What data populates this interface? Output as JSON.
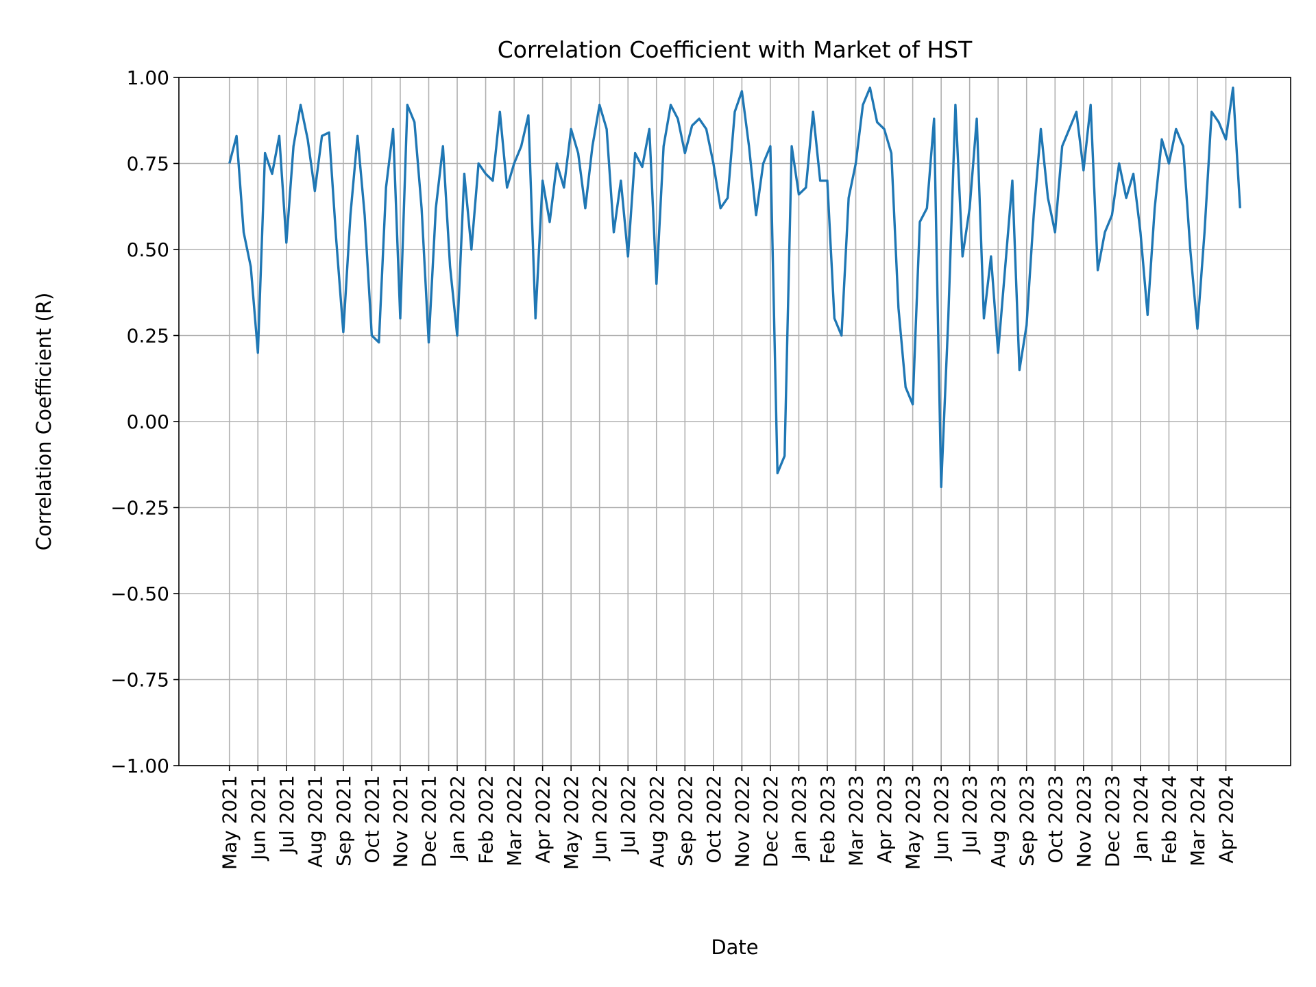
{
  "chart_data": {
    "type": "line",
    "title": "Correlation Coefficient with Market of HST",
    "x_label": "Date",
    "y_label": "Correlation Coefficient (R)",
    "color": "#1f77b4",
    "grid": true,
    "categories": [
      "May 2021",
      null,
      null,
      null,
      "Jun 2021",
      null,
      null,
      null,
      "Jul 2021",
      null,
      null,
      null,
      "Aug 2021",
      null,
      null,
      null,
      "Sep 2021",
      null,
      null,
      null,
      "Oct 2021",
      null,
      null,
      null,
      "Nov 2021",
      null,
      null,
      null,
      "Dec 2021",
      null,
      null,
      null,
      "Jan 2022",
      null,
      null,
      null,
      "Feb 2022",
      null,
      null,
      null,
      "Mar 2022",
      null,
      null,
      null,
      "Apr 2022",
      null,
      null,
      null,
      "May 2022",
      null,
      null,
      null,
      "Jun 2022",
      null,
      null,
      null,
      "Jul 2022",
      null,
      null,
      null,
      "Aug 2022",
      null,
      null,
      null,
      "Sep 2022",
      null,
      null,
      null,
      "Oct 2022",
      null,
      null,
      null,
      "Nov 2022",
      null,
      null,
      null,
      "Dec 2022",
      null,
      null,
      null,
      "Jan 2023",
      null,
      null,
      null,
      "Feb 2023",
      null,
      null,
      null,
      "Mar 2023",
      null,
      null,
      null,
      "Apr 2023",
      null,
      null,
      null,
      "May 2023",
      null,
      null,
      null,
      "Jun 2023",
      null,
      null,
      null,
      "Jul 2023",
      null,
      null,
      null,
      "Aug 2023",
      null,
      null,
      null,
      "Sep 2023",
      null,
      null,
      null,
      "Oct 2023",
      null,
      null,
      null,
      "Nov 2023",
      null,
      null,
      null,
      "Dec 2023",
      null,
      null,
      null,
      "Jan 2024",
      null,
      null,
      null,
      "Feb 2024",
      null,
      null,
      null,
      "Mar 2024",
      null,
      null,
      null,
      "Apr 2024",
      null,
      null
    ],
    "values": [
      0.75,
      0.83,
      0.55,
      0.45,
      0.2,
      0.78,
      0.72,
      0.83,
      0.52,
      0.8,
      0.92,
      0.82,
      0.67,
      0.83,
      0.84,
      0.53,
      0.26,
      0.6,
      0.83,
      0.6,
      0.25,
      0.23,
      0.68,
      0.85,
      0.3,
      0.92,
      0.87,
      0.62,
      0.23,
      0.62,
      0.8,
      0.45,
      0.25,
      0.72,
      0.5,
      0.75,
      0.72,
      0.7,
      0.9,
      0.68,
      0.75,
      0.8,
      0.89,
      0.3,
      0.7,
      0.58,
      0.75,
      0.68,
      0.85,
      0.78,
      0.62,
      0.8,
      0.92,
      0.85,
      0.55,
      0.7,
      0.48,
      0.78,
      0.74,
      0.85,
      0.4,
      0.8,
      0.92,
      0.88,
      0.78,
      0.86,
      0.88,
      0.85,
      0.75,
      0.62,
      0.65,
      0.9,
      0.96,
      0.8,
      0.6,
      0.75,
      0.8,
      -0.15,
      -0.1,
      0.8,
      0.66,
      0.68,
      0.9,
      0.7,
      0.7,
      0.3,
      0.25,
      0.65,
      0.75,
      0.92,
      0.97,
      0.87,
      0.85,
      0.78,
      0.33,
      0.1,
      0.05,
      0.58,
      0.62,
      0.88,
      -0.19,
      0.3,
      0.92,
      0.48,
      0.62,
      0.88,
      0.3,
      0.48,
      0.2,
      0.45,
      0.7,
      0.15,
      0.28,
      0.6,
      0.85,
      0.65,
      0.55,
      0.8,
      0.85,
      0.9,
      0.73,
      0.92,
      0.44,
      0.55,
      0.6,
      0.75,
      0.65,
      0.72,
      0.55,
      0.31,
      0.62,
      0.82,
      0.75,
      0.85,
      0.8,
      0.5,
      0.27,
      0.55,
      0.9,
      0.87,
      0.82,
      0.97,
      0.62
    ],
    "ylim": [
      -1.0,
      1.0
    ],
    "yticks": [
      {
        "value": -1.0,
        "label": "−1.00"
      },
      {
        "value": -0.75,
        "label": "−0.75"
      },
      {
        "value": -0.5,
        "label": "−0.50"
      },
      {
        "value": -0.25,
        "label": "−0.25"
      },
      {
        "value": 0.0,
        "label": "0.00"
      },
      {
        "value": 0.25,
        "label": "0.25"
      },
      {
        "value": 0.5,
        "label": "0.50"
      },
      {
        "value": 0.75,
        "label": "0.75"
      },
      {
        "value": 1.0,
        "label": "1.00"
      }
    ]
  }
}
